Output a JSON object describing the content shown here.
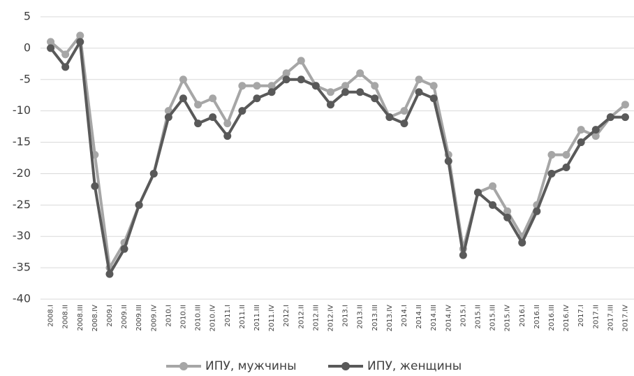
{
  "chart_data": {
    "type": "line",
    "categories": [
      "2008.I",
      "2008.II",
      "2008.III",
      "2008.IV",
      "2009.I",
      "2009.II",
      "2009.III",
      "2009.IV",
      "2010.I",
      "2010.II",
      "2010.III",
      "2010.IV",
      "2011.I",
      "2011.II",
      "2011.III",
      "2011.IV",
      "2012.I",
      "2012.II",
      "2012.III",
      "2012.IV",
      "2013.I",
      "2013.II",
      "2013.III",
      "2013.IV",
      "2014.I",
      "2014.II",
      "2014.III",
      "2014.IV",
      "2015.I",
      "2015.II",
      "2015.III",
      "2015.IV",
      "2016.I",
      "2016.II",
      "2016.III",
      "2016.IV",
      "2017.I",
      "2017.II",
      "2017.III",
      "2017.IV"
    ],
    "series": [
      {
        "name": "ИПУ, мужчины",
        "color": "#a6a6a6",
        "values": [
          1,
          -1,
          2,
          -17,
          -35,
          -31,
          -25,
          -20,
          -10,
          -5,
          -9,
          -8,
          -12,
          -6,
          -6,
          -6,
          -4,
          -2,
          -6,
          -7,
          -6,
          -4,
          -6,
          -11,
          -10,
          -5,
          -6,
          -17,
          -32,
          -23,
          -22,
          -26,
          -30,
          -25,
          -17,
          -17,
          -13,
          -14,
          -11,
          -9
        ]
      },
      {
        "name": "ИПУ, женщины",
        "color": "#595959",
        "values": [
          0,
          -3,
          1,
          -22,
          -36,
          -32,
          -25,
          -20,
          -11,
          -8,
          -12,
          -11,
          -14,
          -10,
          -8,
          -7,
          -5,
          -5,
          -6,
          -9,
          -7,
          -7,
          -8,
          -11,
          -12,
          -7,
          -8,
          -18,
          -33,
          -23,
          -25,
          -27,
          -31,
          -26,
          -20,
          -19,
          -15,
          -13,
          -11,
          -11
        ]
      }
    ],
    "ylim": [
      -40,
      5
    ],
    "yticks": [
      5,
      0,
      -5,
      -10,
      -15,
      -20,
      -25,
      -30,
      -35,
      -40
    ],
    "grid": true,
    "legend": "bottom"
  }
}
